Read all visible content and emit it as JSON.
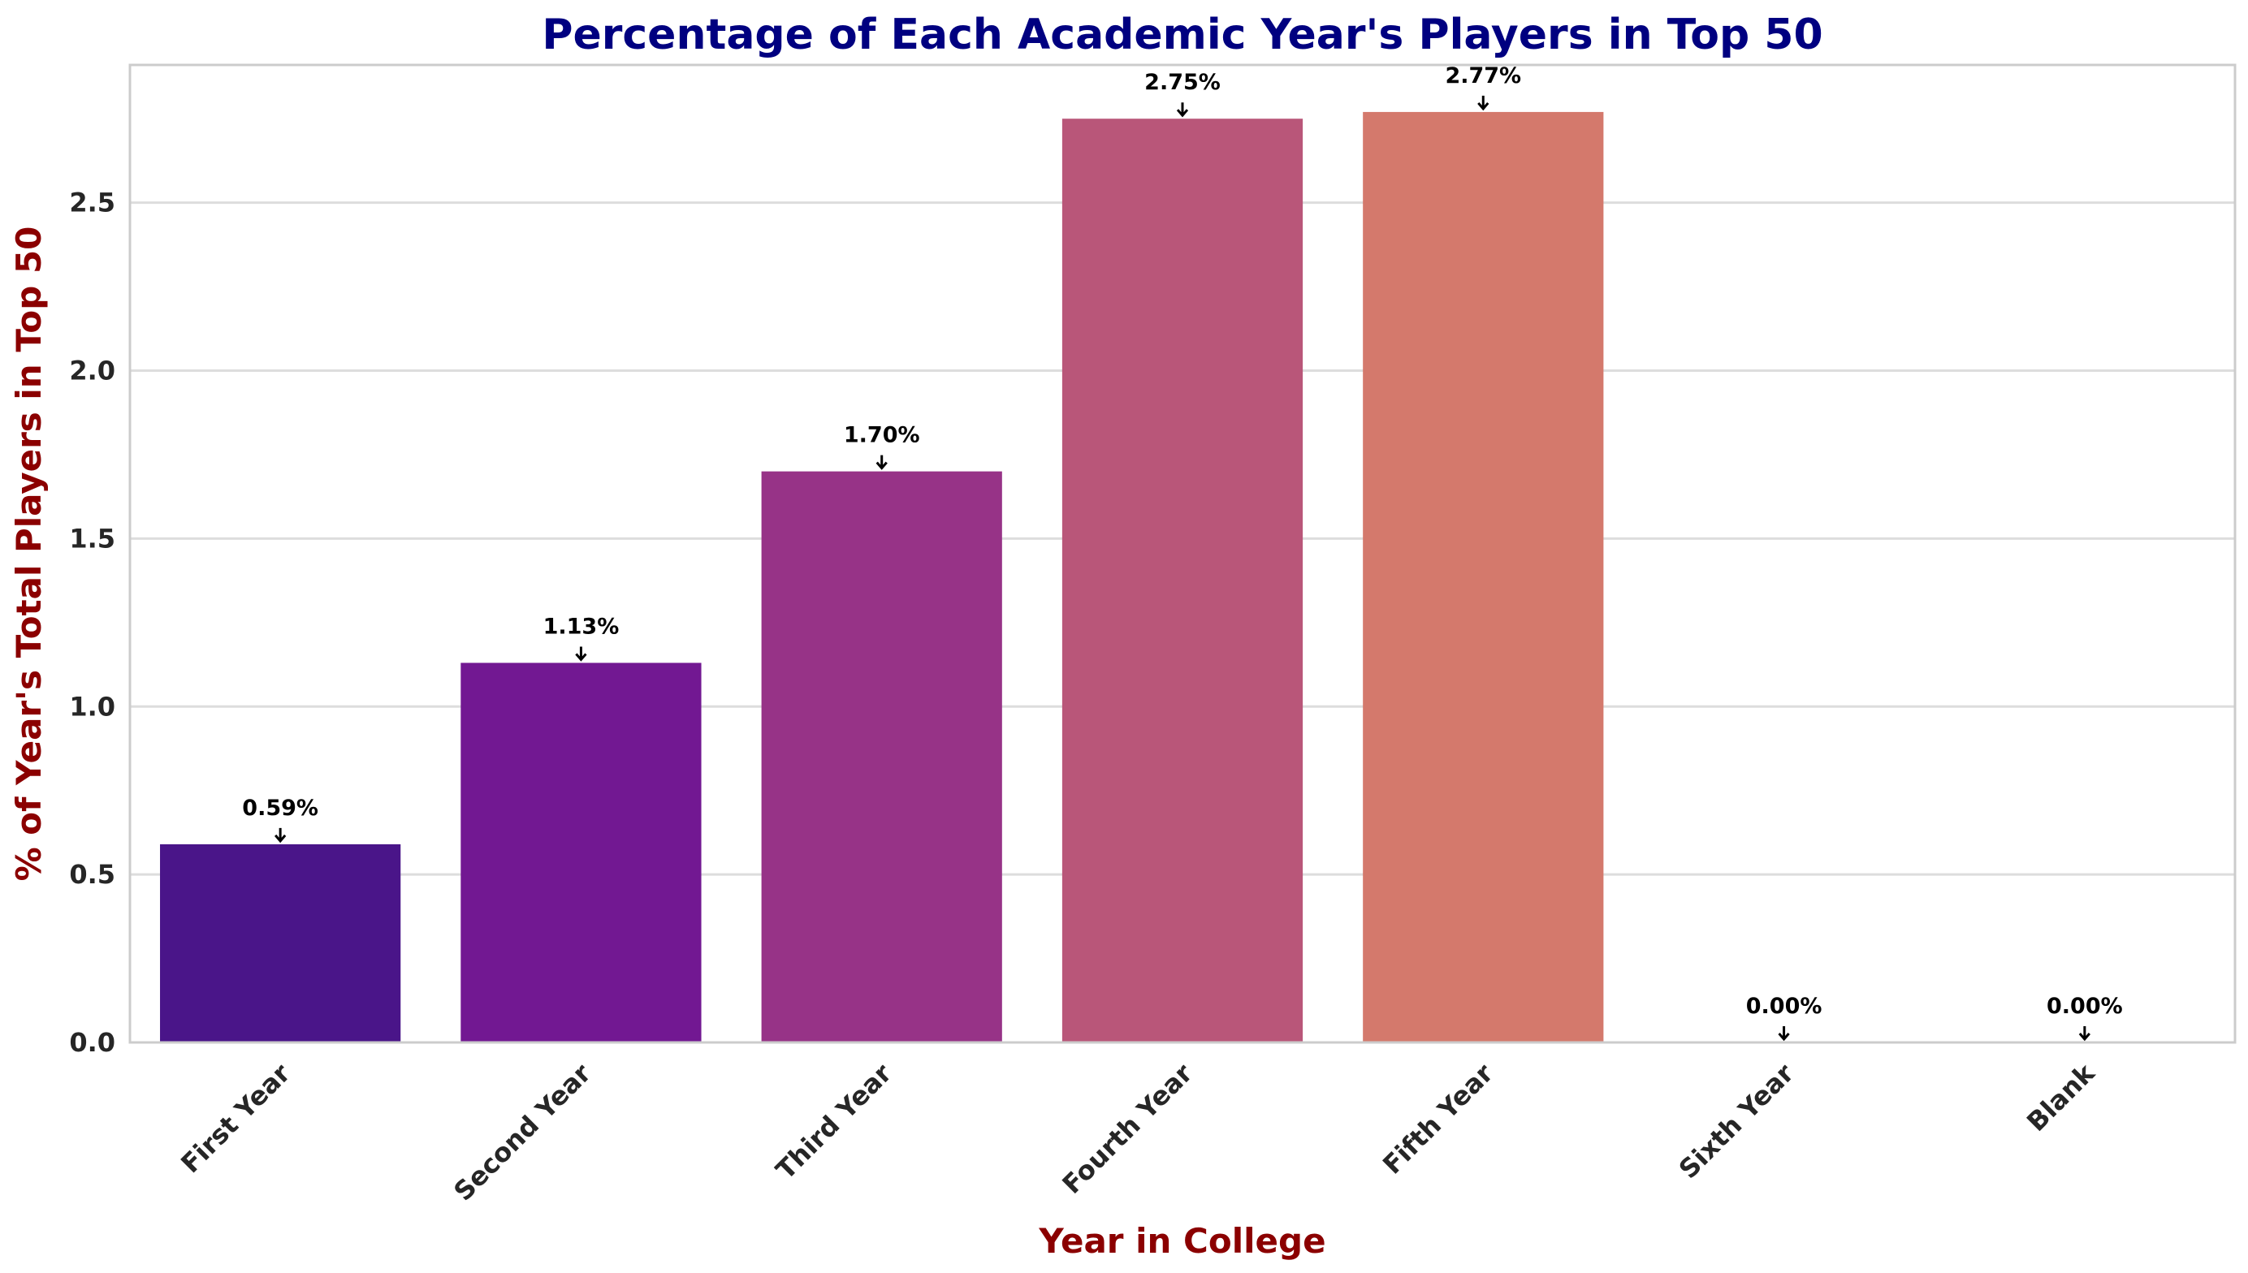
{
  "chart_data": {
    "type": "bar",
    "title": "Percentage of Each Academic Year's Players in Top 50",
    "xlabel": "Year in College",
    "ylabel": "% of Year's Total Players in Top 50",
    "categories": [
      "First Year",
      "Second Year",
      "Third Year",
      "Fourth Year",
      "Fifth Year",
      "Sixth Year",
      "Blank"
    ],
    "values": [
      0.59,
      1.13,
      1.7,
      2.75,
      2.77,
      0.0,
      0.0
    ],
    "data_labels": [
      "0.59%",
      "1.13%",
      "1.70%",
      "2.75%",
      "2.77%",
      "0.00%",
      "0.00%"
    ],
    "colors": [
      "#4a1589",
      "#721892",
      "#973387",
      "#b95679",
      "#d4796c",
      "#e89f5f",
      "#f2c657"
    ],
    "ylim": [
      0,
      2.91
    ],
    "yticks": [
      0.0,
      0.5,
      1.0,
      1.5,
      2.0,
      2.5
    ],
    "ytick_labels": [
      "0.0",
      "0.5",
      "1.0",
      "1.5",
      "2.0",
      "2.5"
    ],
    "grid": "horizontal",
    "legend": "none"
  }
}
